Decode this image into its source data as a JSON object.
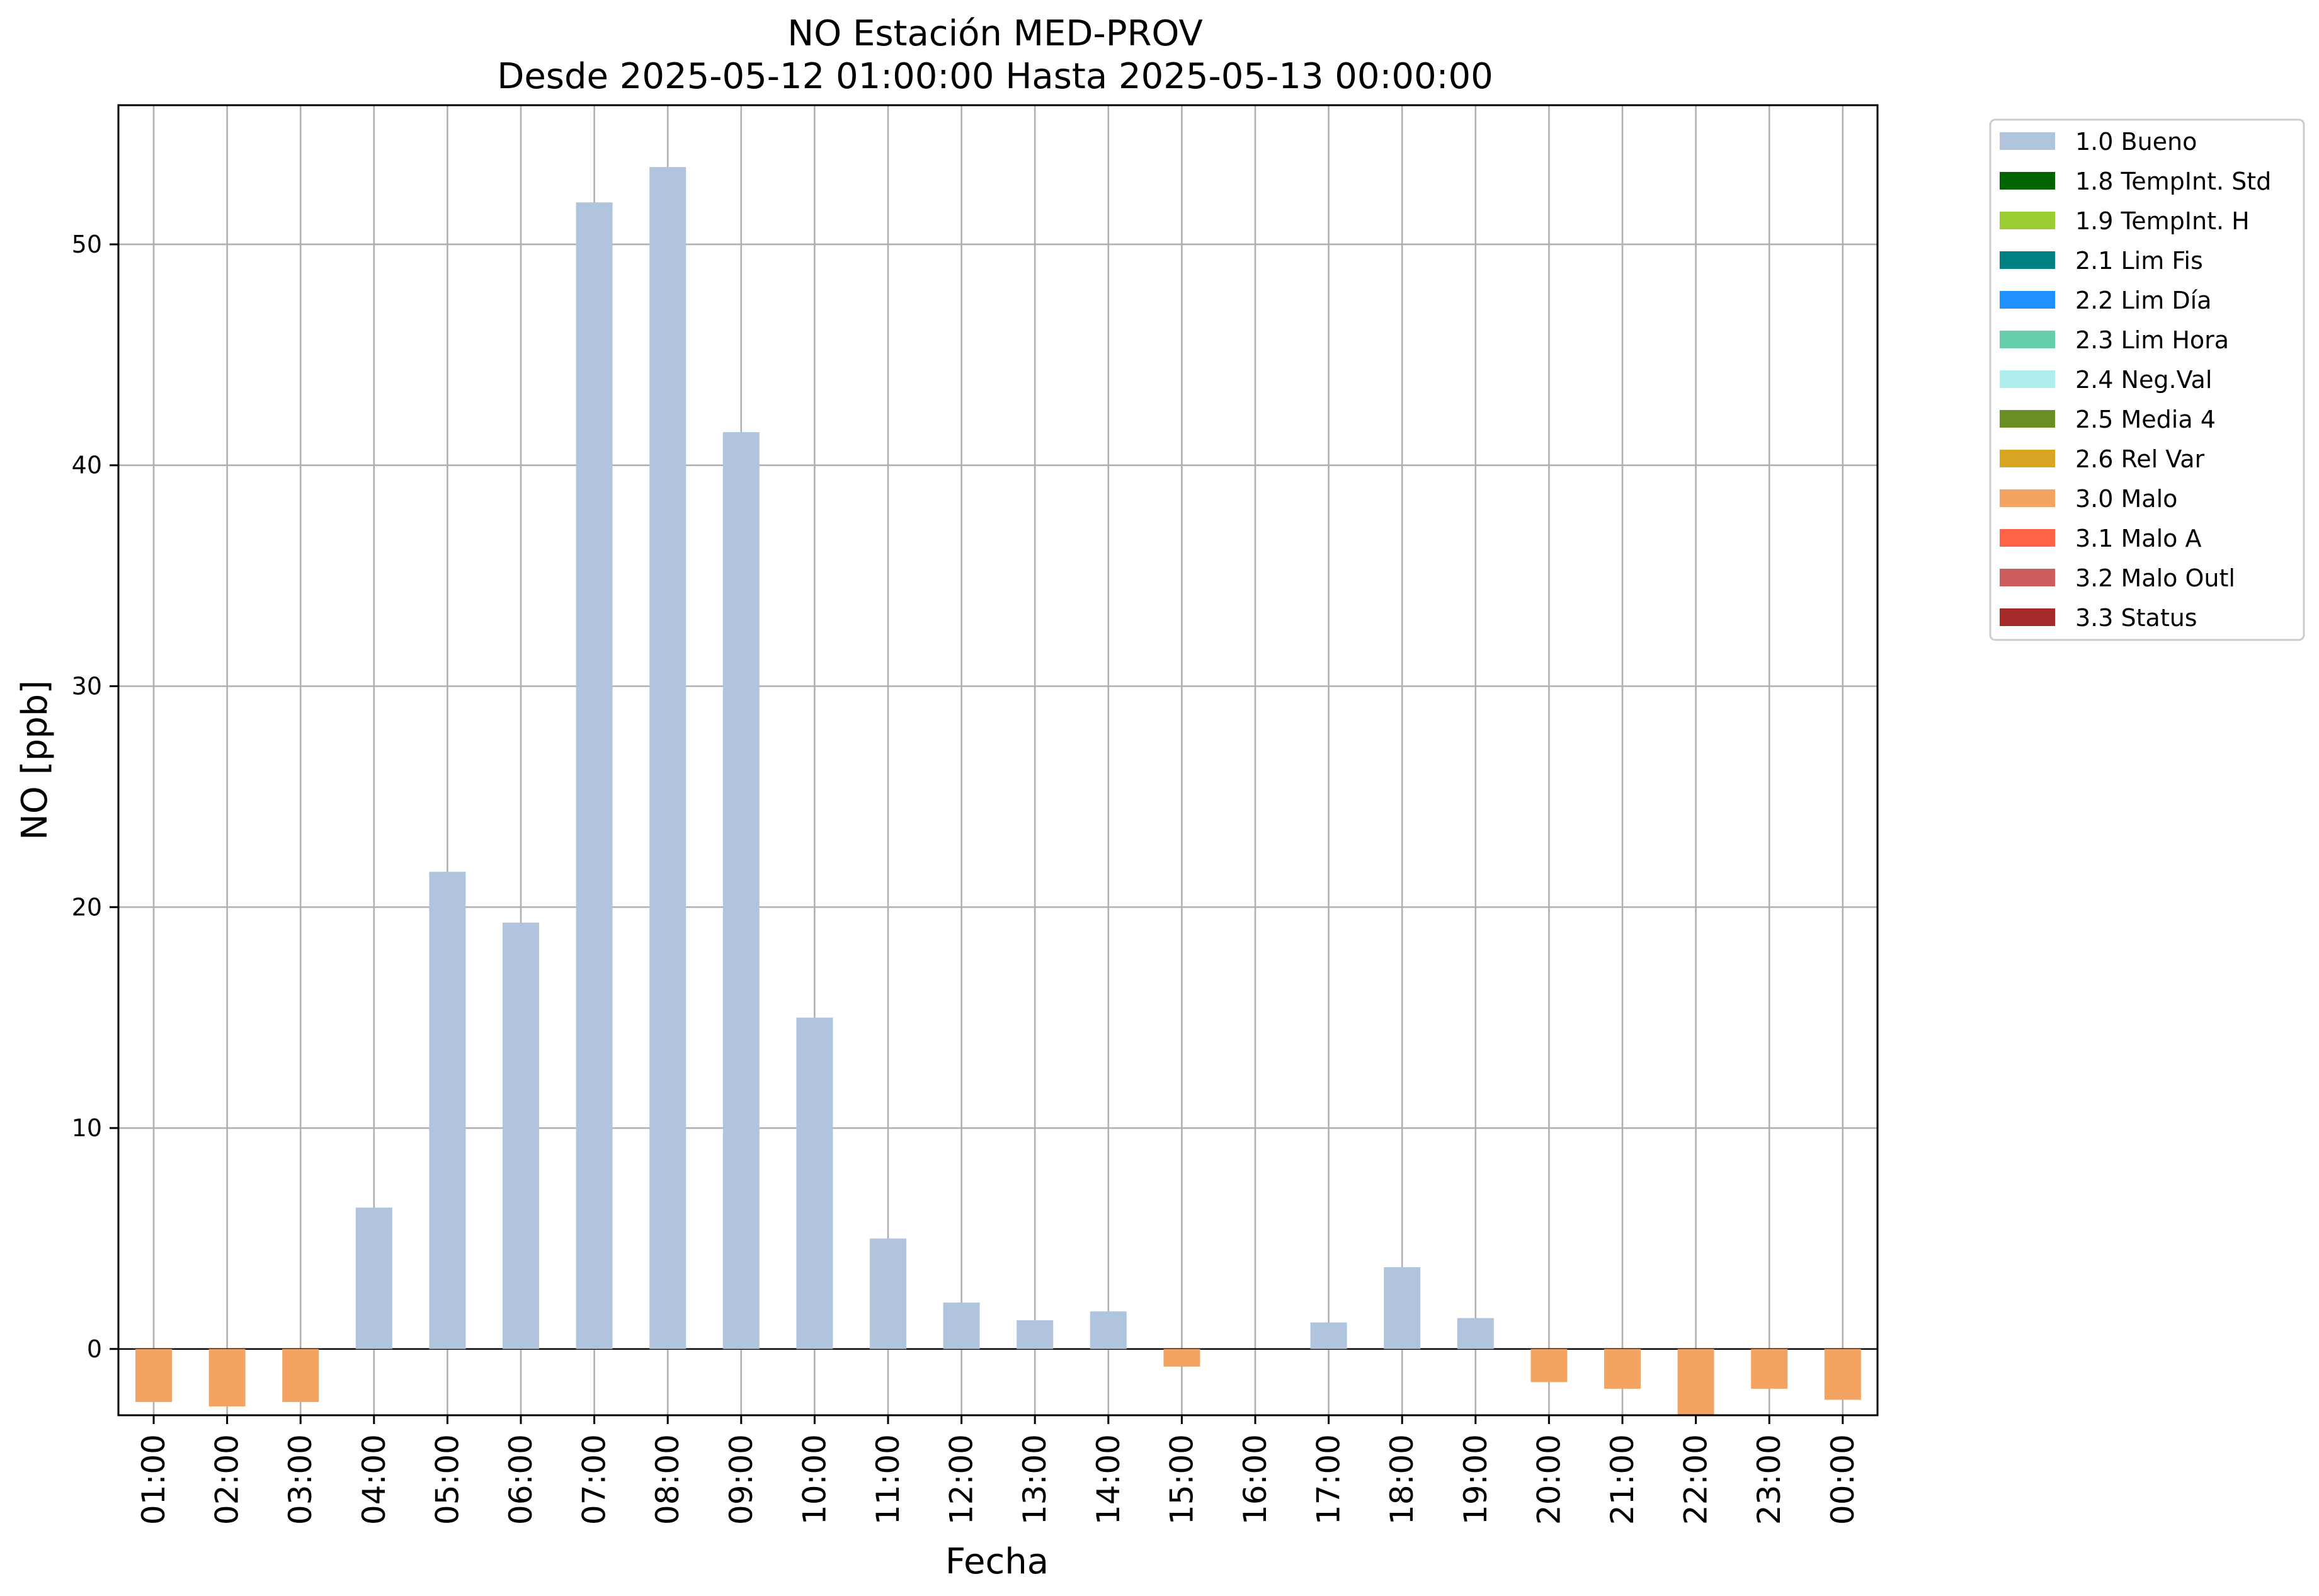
{
  "chart_data": {
    "type": "bar",
    "title": "NO Estación MED-PROV",
    "subtitle": "Desde 2025-05-12 01:00:00 Hasta 2025-05-13 00:00:00",
    "xlabel": "Fecha",
    "ylabel": "NO [ppb]",
    "ylim": [
      -3,
      56.3
    ],
    "yticks": [
      0,
      10,
      20,
      30,
      40,
      50
    ],
    "grid": true,
    "legend_position": "outside-top-right",
    "categories": [
      "01:00",
      "02:00",
      "03:00",
      "04:00",
      "05:00",
      "06:00",
      "07:00",
      "08:00",
      "09:00",
      "10:00",
      "11:00",
      "12:00",
      "13:00",
      "14:00",
      "15:00",
      "16:00",
      "17:00",
      "18:00",
      "19:00",
      "20:00",
      "21:00",
      "22:00",
      "23:00",
      "00:00"
    ],
    "values": [
      -2.4,
      -2.6,
      -2.4,
      6.4,
      21.6,
      19.3,
      51.9,
      53.5,
      41.5,
      15.0,
      5.0,
      2.1,
      1.3,
      1.7,
      -0.8,
      0.0,
      1.2,
      3.7,
      1.4,
      -1.5,
      -1.8,
      -3.0,
      -1.8,
      -2.3
    ],
    "flags": [
      "3.0 Malo",
      "3.0 Malo",
      "3.0 Malo",
      "1.0 Bueno",
      "1.0 Bueno",
      "1.0 Bueno",
      "1.0 Bueno",
      "1.0 Bueno",
      "1.0 Bueno",
      "1.0 Bueno",
      "1.0 Bueno",
      "1.0 Bueno",
      "1.0 Bueno",
      "1.0 Bueno",
      "3.0 Malo",
      "1.0 Bueno",
      "1.0 Bueno",
      "1.0 Bueno",
      "1.0 Bueno",
      "3.0 Malo",
      "3.0 Malo",
      "3.0 Malo",
      "3.0 Malo",
      "3.0 Malo"
    ],
    "legend": [
      {
        "label": "1.0 Bueno",
        "color": "#b0c4de"
      },
      {
        "label": "1.8 TempInt. Std",
        "color": "#006400"
      },
      {
        "label": "1.9 TempInt. H",
        "color": "#9acd32"
      },
      {
        "label": "2.1 Lim Fis",
        "color": "#008080"
      },
      {
        "label": "2.2 Lim Día",
        "color": "#1e90ff"
      },
      {
        "label": "2.3 Lim Hora",
        "color": "#66cdaa"
      },
      {
        "label": "2.4 Neg.Val",
        "color": "#afeeee"
      },
      {
        "label": "2.5 Media 4",
        "color": "#6b8e23"
      },
      {
        "label": "2.6 Rel Var",
        "color": "#daa520"
      },
      {
        "label": "3.0 Malo",
        "color": "#f4a460"
      },
      {
        "label": "3.1 Malo A",
        "color": "#ff6347"
      },
      {
        "label": "3.2 Malo Outl",
        "color": "#cd5c5c"
      },
      {
        "label": "3.3 Status",
        "color": "#a52a2a"
      }
    ]
  }
}
